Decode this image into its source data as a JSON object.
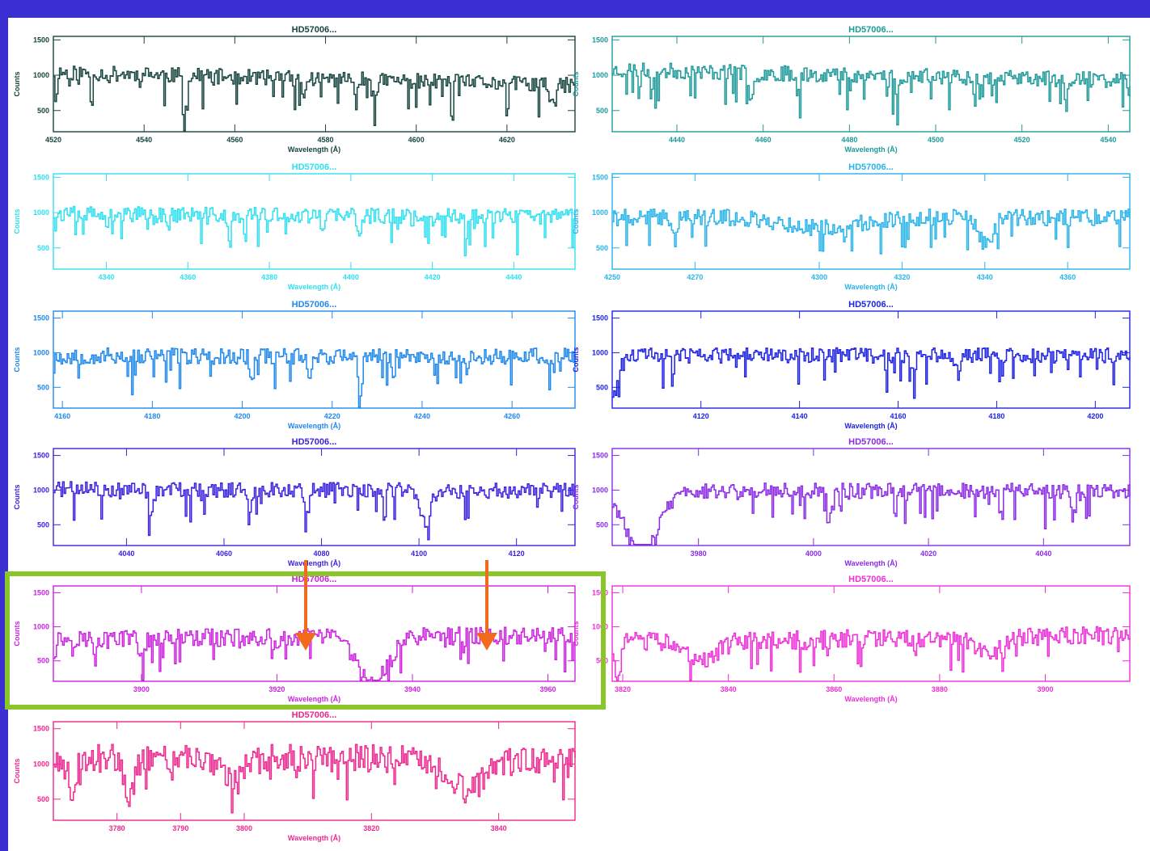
{
  "colors": {
    "background": "#3a2fd0",
    "panel": "#ffffff",
    "highlight": "#8ac629",
    "arrow": "#f26a1b"
  },
  "chart_data": [
    {
      "type": "line",
      "title": "HD57006...",
      "xlabel": "Wavelength (Å)",
      "ylabel": "Counts",
      "color": "#17453f",
      "xlim": [
        4520,
        4635
      ],
      "ylim": [
        200,
        1550
      ],
      "xticks": [
        4520,
        4540,
        4560,
        4580,
        4600,
        4620
      ],
      "yticks": [
        500,
        1000,
        1500
      ],
      "continuum": 950,
      "tilt": -180,
      "noise": 110,
      "lines": [
        [
          4549,
          -450,
          0.6
        ],
        [
          4575,
          -230,
          0.8
        ],
        [
          4591,
          -250,
          0.7
        ],
        [
          4630,
          -300,
          1.0
        ]
      ],
      "seed": 11
    },
    {
      "type": "line",
      "title": "HD57006...",
      "xlabel": "Wavelength (Å)",
      "ylabel": "Counts",
      "color": "#1e9a9a",
      "xlim": [
        4425,
        4545
      ],
      "ylim": [
        200,
        1550
      ],
      "xticks": [
        4440,
        4460,
        4480,
        4500,
        4520,
        4540
      ],
      "yticks": [
        500,
        1000,
        1500
      ],
      "continuum": 1000,
      "tilt": -150,
      "noise": 110,
      "lines": [
        [
          4457,
          -380,
          0.7
        ],
        [
          4468,
          -260,
          0.6
        ],
        [
          4491,
          -260,
          0.6
        ],
        [
          4530,
          -220,
          0.6
        ]
      ],
      "seed": 23
    },
    {
      "type": "line",
      "title": "HD57006...",
      "xlabel": "Wavelength (Å)",
      "ylabel": "Counts",
      "color": "#2fe0f0",
      "xlim": [
        4327,
        4455
      ],
      "ylim": [
        200,
        1550
      ],
      "xticks": [
        4340,
        4360,
        4380,
        4400,
        4420,
        4440
      ],
      "yticks": [
        500,
        1000,
        1500
      ],
      "continuum": 960,
      "tilt": -40,
      "noise": 110,
      "lines": [
        [
          4340,
          -300,
          0.6
        ],
        [
          4370,
          -400,
          0.6
        ],
        [
          4393,
          -280,
          0.6
        ],
        [
          4402,
          -320,
          0.6
        ]
      ],
      "seed": 37
    },
    {
      "type": "line",
      "title": "HD57006...",
      "xlabel": "Wavelength (Å)",
      "ylabel": "Counts",
      "color": "#28b4ea",
      "xlim": [
        4250,
        4375
      ],
      "ylim": [
        200,
        1550
      ],
      "xticks": [
        4250,
        4270,
        4300,
        4320,
        4340,
        4360
      ],
      "yticks": [
        500,
        1000,
        1500
      ],
      "continuum": 930,
      "tilt": 0,
      "noise": 120,
      "lines": [
        [
          4300,
          -150,
          12
        ],
        [
          4340,
          -380,
          2.5
        ],
        [
          4265,
          -300,
          0.6
        ],
        [
          4306,
          -260,
          0.6
        ]
      ],
      "seed": 41
    },
    {
      "type": "line",
      "title": "HD57006...",
      "xlabel": "Wavelength (Å)",
      "ylabel": "Counts",
      "color": "#1f88ee",
      "xlim": [
        4158,
        4274
      ],
      "ylim": [
        200,
        1600
      ],
      "xticks": [
        4160,
        4180,
        4200,
        4220,
        4240,
        4260
      ],
      "yticks": [
        500,
        1000,
        1500
      ],
      "continuum": 950,
      "tilt": 0,
      "noise": 120,
      "lines": [
        [
          4226,
          -600,
          0.6
        ],
        [
          4202,
          -300,
          0.6
        ],
        [
          4215,
          -280,
          0.6
        ],
        [
          4250,
          -260,
          0.6
        ]
      ],
      "seed": 53
    },
    {
      "type": "line",
      "title": "HD57006...",
      "xlabel": "Wavelength (Å)",
      "ylabel": "Counts",
      "color": "#1e22e6",
      "xlim": [
        4102,
        4207
      ],
      "ylim": [
        200,
        1600
      ],
      "xticks": [
        4120,
        4140,
        4160,
        4180,
        4200
      ],
      "yticks": [
        500,
        1000,
        1500
      ],
      "continuum": 960,
      "tilt": 0,
      "noise": 110,
      "lines": [
        [
          4102,
          -550,
          1.6
        ],
        [
          4163,
          -250,
          0.6
        ],
        [
          4172,
          -260,
          0.6
        ]
      ],
      "seed": 61
    },
    {
      "type": "line",
      "title": "HD57006...",
      "xlabel": "Wavelength (Å)",
      "ylabel": "Counts",
      "color": "#3a22e0",
      "xlim": [
        4025,
        4132
      ],
      "ylim": [
        200,
        1600
      ],
      "xticks": [
        4040,
        4060,
        4080,
        4100,
        4120
      ],
      "yticks": [
        500,
        1000,
        1500
      ],
      "continuum": 1000,
      "tilt": -30,
      "noise": 110,
      "lines": [
        [
          4101,
          -450,
          1.6
        ],
        [
          4045,
          -450,
          0.6
        ],
        [
          4065,
          -320,
          0.6
        ],
        [
          4077,
          -260,
          0.6
        ]
      ],
      "seed": 71
    },
    {
      "type": "line",
      "title": "HD57006...",
      "xlabel": "Wavelength (Å)",
      "ylabel": "Counts",
      "color": "#8a2ae8",
      "xlim": [
        3965,
        4055
      ],
      "ylim": [
        200,
        1600
      ],
      "xticks": [
        3980,
        4000,
        4020,
        4040
      ],
      "yticks": [
        500,
        1000,
        1500
      ],
      "continuum": 990,
      "tilt": 0,
      "noise": 110,
      "lines": [
        [
          3970,
          -900,
          4
        ],
        [
          4045,
          -400,
          0.6
        ],
        [
          4003,
          -300,
          0.6
        ]
      ],
      "seed": 83
    },
    {
      "type": "line",
      "title": "HD57006...",
      "xlabel": "Wavelength (Å)",
      "ylabel": "Counts",
      "color": "#cc22e0",
      "xlim": [
        3887,
        3964
      ],
      "ylim": [
        200,
        1600
      ],
      "xticks": [
        3900,
        3920,
        3940,
        3960
      ],
      "yticks": [
        500,
        1000,
        1500
      ],
      "continuum": 850,
      "tilt": 60,
      "noise": 130,
      "lines": [
        [
          3934,
          -700,
          3.2
        ],
        [
          3969,
          -760,
          3.2
        ],
        [
          3900,
          -300,
          0.6
        ],
        [
          3920,
          -200,
          0.6
        ]
      ],
      "seed": 97
    },
    {
      "type": "line",
      "title": "HD57006...",
      "xlabel": "Wavelength (Å)",
      "ylabel": "Counts",
      "color": "#f02ed8",
      "xlim": [
        3818,
        3916
      ],
      "ylim": [
        200,
        1600
      ],
      "xticks": [
        3820,
        3840,
        3860,
        3880,
        3900
      ],
      "yticks": [
        500,
        1000,
        1500
      ],
      "continuum": 820,
      "tilt": 100,
      "noise": 140,
      "lines": [
        [
          3835,
          -250,
          4
        ],
        [
          3889,
          -250,
          3
        ],
        [
          3819,
          -500,
          0.8
        ]
      ],
      "seed": 103
    },
    {
      "type": "line",
      "title": "HD57006...",
      "xlabel": "Wavelength (Å)",
      "ylabel": "Counts",
      "color": "#f0268e",
      "xlim": [
        3770,
        3852
      ],
      "ylim": [
        200,
        1600
      ],
      "xticks": [
        3780,
        3790,
        3800,
        3820,
        3840
      ],
      "yticks": [
        500,
        1000,
        1500
      ],
      "continuum": 1080,
      "tilt": 0,
      "noise": 200,
      "lines": [
        [
          3798,
          -250,
          3
        ],
        [
          3835,
          -450,
          4
        ],
        [
          3773,
          -700,
          0.6
        ],
        [
          3782,
          -500,
          1.0
        ]
      ],
      "seed": 113
    }
  ]
}
